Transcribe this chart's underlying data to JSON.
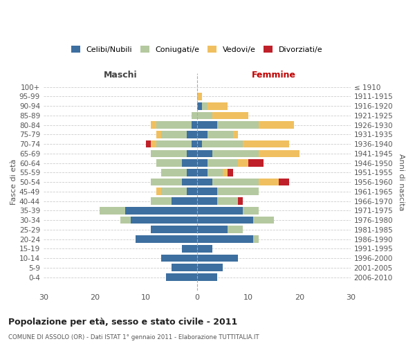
{
  "age_groups": [
    "100+",
    "95-99",
    "90-94",
    "85-89",
    "80-84",
    "75-79",
    "70-74",
    "65-69",
    "60-64",
    "55-59",
    "50-54",
    "45-49",
    "40-44",
    "35-39",
    "30-34",
    "25-29",
    "20-24",
    "15-19",
    "10-14",
    "5-9",
    "0-4"
  ],
  "birth_years": [
    "≤ 1910",
    "1911-1915",
    "1916-1920",
    "1921-1925",
    "1926-1930",
    "1931-1935",
    "1936-1940",
    "1941-1945",
    "1946-1950",
    "1951-1955",
    "1956-1960",
    "1961-1965",
    "1966-1970",
    "1971-1975",
    "1976-1980",
    "1981-1985",
    "1986-1990",
    "1991-1995",
    "1996-2000",
    "2001-2005",
    "2006-2010"
  ],
  "colors": {
    "celibi": "#3d6fa0",
    "coniugati": "#b5c9a0",
    "vedovi": "#f0c060",
    "divorziati": "#c0202a"
  },
  "males": {
    "celibi": [
      0,
      0,
      0,
      0,
      1,
      2,
      1,
      2,
      3,
      2,
      3,
      2,
      5,
      14,
      13,
      9,
      12,
      3,
      7,
      5,
      6
    ],
    "coniugati": [
      0,
      0,
      0,
      1,
      7,
      5,
      7,
      7,
      5,
      5,
      6,
      5,
      4,
      5,
      2,
      0,
      0,
      0,
      0,
      0,
      0
    ],
    "vedovi": [
      0,
      0,
      0,
      0,
      1,
      1,
      1,
      0,
      0,
      0,
      0,
      1,
      0,
      0,
      0,
      0,
      0,
      0,
      0,
      0,
      0
    ],
    "divorziati": [
      0,
      0,
      0,
      0,
      0,
      0,
      1,
      0,
      0,
      0,
      0,
      0,
      0,
      0,
      0,
      0,
      0,
      0,
      0,
      0,
      0
    ]
  },
  "females": {
    "celibi": [
      0,
      0,
      1,
      0,
      4,
      2,
      1,
      3,
      2,
      2,
      3,
      4,
      4,
      9,
      11,
      6,
      11,
      3,
      8,
      5,
      4
    ],
    "coniugati": [
      0,
      0,
      1,
      3,
      8,
      5,
      8,
      9,
      6,
      3,
      9,
      8,
      4,
      3,
      4,
      3,
      1,
      0,
      0,
      0,
      0
    ],
    "vedovi": [
      0,
      1,
      4,
      7,
      7,
      1,
      9,
      8,
      2,
      1,
      4,
      0,
      0,
      0,
      0,
      0,
      0,
      0,
      0,
      0,
      0
    ],
    "divorziati": [
      0,
      0,
      0,
      0,
      0,
      0,
      0,
      0,
      3,
      1,
      2,
      0,
      1,
      0,
      0,
      0,
      0,
      0,
      0,
      0,
      0
    ]
  },
  "title": "Popolazione per età, sesso e stato civile - 2011",
  "subtitle": "COMUNE DI ASSOLO (OR) - Dati ISTAT 1° gennaio 2011 - Elaborazione TUTTITALIA.IT",
  "xlabel_left": "Maschi",
  "xlabel_right": "Femmine",
  "ylabel_left": "Fasce di età",
  "ylabel_right": "Anni di nascita",
  "xlim": 30,
  "bg_color": "#ffffff",
  "grid_color": "#cccccc",
  "legend_labels": [
    "Celibi/Nubili",
    "Coniugati/e",
    "Vedovi/e",
    "Divorziati/e"
  ]
}
